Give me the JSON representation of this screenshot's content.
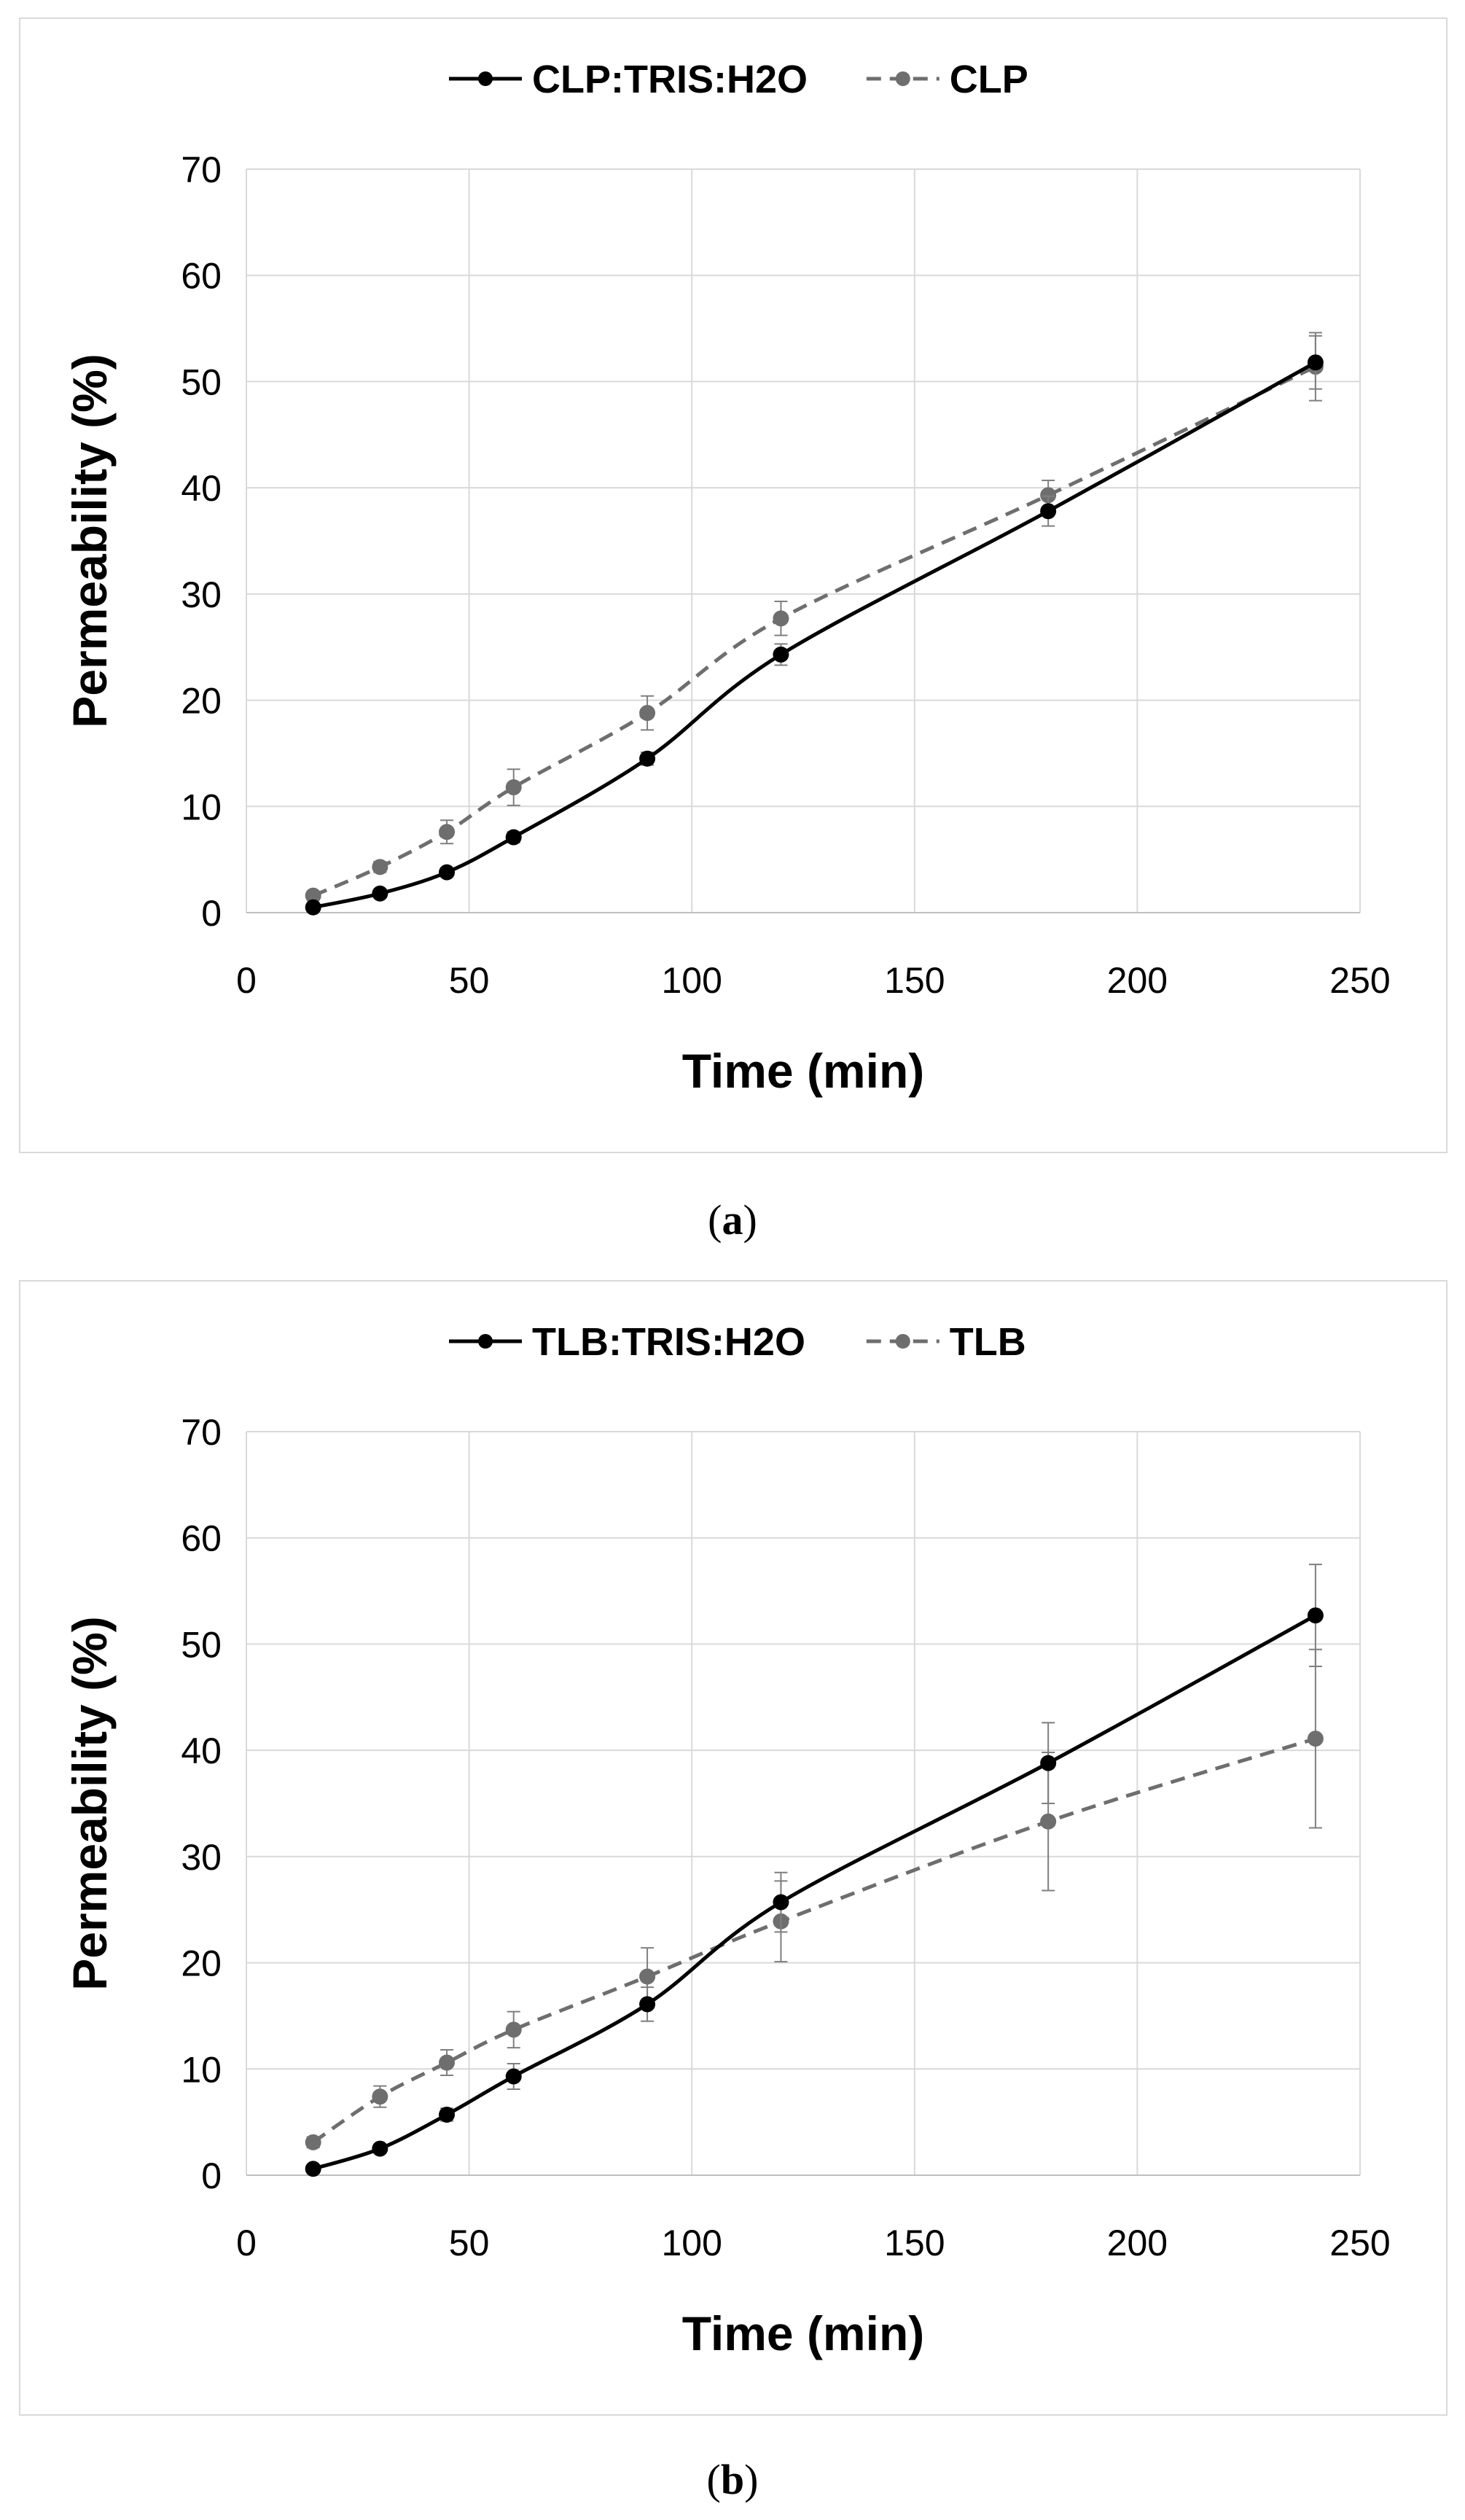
{
  "chart_data": [
    {
      "type": "line",
      "panel_id": "a",
      "title": "",
      "xlabel": "Time (min)",
      "ylabel": "Permeability (%)",
      "xlim": [
        0,
        250
      ],
      "ylim": [
        0,
        70
      ],
      "xticks": [
        0,
        50,
        100,
        150,
        200,
        250
      ],
      "yticks": [
        0,
        10,
        20,
        30,
        40,
        50,
        60,
        70
      ],
      "grid": true,
      "legend_position": "top-center",
      "x": [
        15,
        30,
        45,
        60,
        90,
        120,
        180,
        240
      ],
      "series": [
        {
          "name": "CLP:TRIS:H2O",
          "style": "solid",
          "color": "#000000",
          "values": [
            0.5,
            1.8,
            3.8,
            7.1,
            14.5,
            24.3,
            37.8,
            51.8
          ],
          "errors": [
            0.3,
            0.3,
            0.4,
            0.5,
            0.6,
            1.0,
            1.4,
            2.5
          ]
        },
        {
          "name": "CLP",
          "style": "dashed",
          "color": "#6e6e6e",
          "values": [
            1.6,
            4.3,
            7.6,
            11.8,
            18.8,
            27.7,
            39.3,
            51.4
          ],
          "errors": [
            0.4,
            0.5,
            1.1,
            1.7,
            1.6,
            1.6,
            1.4,
            3.2
          ]
        }
      ]
    },
    {
      "type": "line",
      "panel_id": "b",
      "title": "",
      "xlabel": "Time (min)",
      "ylabel": "Permeability (%)",
      "xlim": [
        0,
        250
      ],
      "ylim": [
        0,
        70
      ],
      "xticks": [
        0,
        50,
        100,
        150,
        200,
        250
      ],
      "yticks": [
        0,
        10,
        20,
        30,
        40,
        50,
        60,
        70
      ],
      "grid": true,
      "legend_position": "top-center",
      "x": [
        15,
        30,
        45,
        60,
        90,
        120,
        180,
        240
      ],
      "series": [
        {
          "name": "TLB:TRIS:H2O",
          "style": "solid",
          "color": "#000000",
          "values": [
            0.6,
            2.5,
            5.7,
            9.3,
            16.1,
            25.7,
            38.8,
            52.7
          ],
          "errors": [
            0.3,
            0.4,
            0.6,
            1.2,
            1.6,
            2.8,
            3.8,
            4.8
          ]
        },
        {
          "name": "TLB",
          "style": "dashed",
          "color": "#6e6e6e",
          "values": [
            3.1,
            7.4,
            10.6,
            13.7,
            18.7,
            23.9,
            33.3,
            41.1
          ],
          "errors": [
            0.5,
            1.0,
            1.2,
            1.7,
            2.7,
            3.8,
            6.5,
            8.4
          ]
        }
      ]
    }
  ],
  "captions": {
    "a": {
      "open": "(",
      "letter": "a",
      "close": ")"
    },
    "b": {
      "open": "(",
      "letter": "b",
      "close": ")"
    }
  }
}
